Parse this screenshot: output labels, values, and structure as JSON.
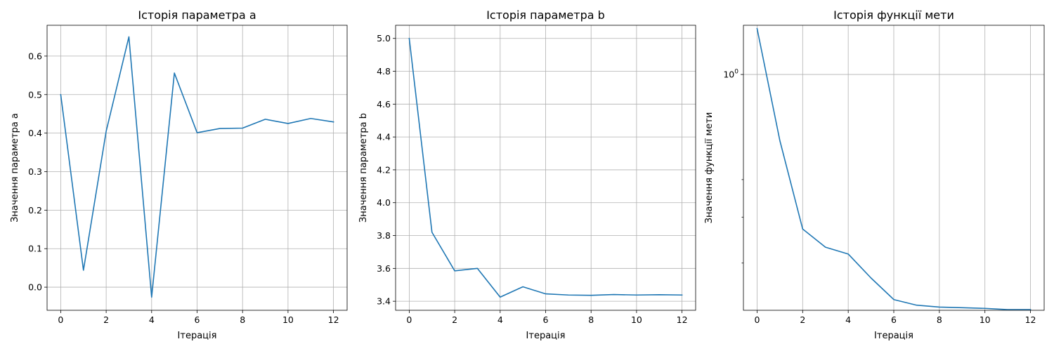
{
  "chart_data": [
    {
      "type": "line",
      "title": "Історія параметра a",
      "xlabel": "Ітерація",
      "ylabel": "Значення параметра a",
      "yscale": "linear",
      "grid": true,
      "color": "#1f77b4",
      "xlim": [
        -0.6,
        12.6
      ],
      "ylim": [
        -0.06,
        0.68
      ],
      "xticks": [
        0,
        2,
        4,
        6,
        8,
        10,
        12
      ],
      "xtick_labels": [
        "0",
        "2",
        "4",
        "6",
        "8",
        "10",
        "12"
      ],
      "yticks": [
        0.0,
        0.1,
        0.2,
        0.3,
        0.4,
        0.5,
        0.6
      ],
      "ytick_labels": [
        "0.0",
        "0.1",
        "0.2",
        "0.3",
        "0.4",
        "0.5",
        "0.6"
      ],
      "x": [
        0,
        1,
        2,
        3,
        4,
        5,
        6,
        7,
        8,
        9,
        10,
        11,
        12
      ],
      "y": [
        0.5,
        0.044,
        0.405,
        0.65,
        -0.026,
        0.556,
        0.401,
        0.412,
        0.413,
        0.436,
        0.425,
        0.438,
        0.429
      ]
    },
    {
      "type": "line",
      "title": "Історія параметра b",
      "xlabel": "Ітерація",
      "ylabel": "Значення параметра b",
      "yscale": "linear",
      "grid": true,
      "color": "#1f77b4",
      "xlim": [
        -0.6,
        12.6
      ],
      "ylim": [
        3.345,
        5.08
      ],
      "xticks": [
        0,
        2,
        4,
        6,
        8,
        10,
        12
      ],
      "xtick_labels": [
        "0",
        "2",
        "4",
        "6",
        "8",
        "10",
        "12"
      ],
      "yticks": [
        3.4,
        3.6,
        3.8,
        4.0,
        4.2,
        4.4,
        4.6,
        4.8,
        5.0
      ],
      "ytick_labels": [
        "3.4",
        "3.6",
        "3.8",
        "4.0",
        "4.2",
        "4.4",
        "4.6",
        "4.8",
        "5.0"
      ],
      "x": [
        0,
        1,
        2,
        3,
        4,
        5,
        6,
        7,
        8,
        9,
        10,
        11,
        12
      ],
      "y": [
        5.0,
        3.82,
        3.585,
        3.6,
        3.425,
        3.488,
        3.445,
        3.438,
        3.436,
        3.441,
        3.438,
        3.44,
        3.438
      ]
    },
    {
      "type": "line",
      "title": "Історія функції мети",
      "xlabel": "Ітерація",
      "ylabel": "Значення функції мети",
      "yscale": "log",
      "grid": true,
      "color": "#1f77b4",
      "xlim": [
        -0.6,
        12.6
      ],
      "ylim": [
        0.318,
        1.27
      ],
      "xticks": [
        0,
        2,
        4,
        6,
        8,
        10,
        12
      ],
      "xtick_labels": [
        "0",
        "2",
        "4",
        "6",
        "8",
        "10",
        "12"
      ],
      "yticks": [
        1.0
      ],
      "ytick_labels": [
        "10",
        "0"
      ],
      "yminor": [
        0.4,
        0.5,
        0.6
      ],
      "x": [
        0,
        1,
        2,
        3,
        4,
        5,
        6,
        7,
        8,
        9,
        10,
        11,
        12
      ],
      "y": [
        1.25,
        0.725,
        0.472,
        0.432,
        0.418,
        0.372,
        0.335,
        0.326,
        0.323,
        0.322,
        0.321,
        0.319,
        0.319
      ]
    }
  ]
}
